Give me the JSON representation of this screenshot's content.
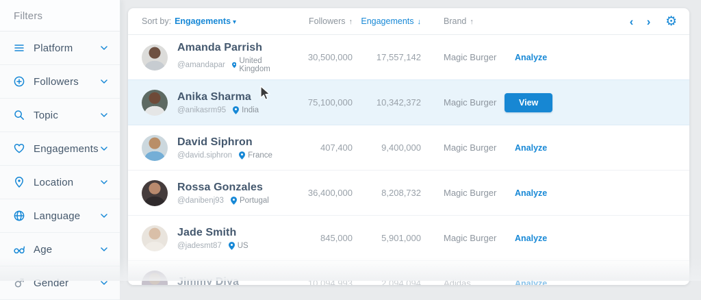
{
  "sidebar": {
    "title": "Filters",
    "items": [
      {
        "label": "Platform",
        "icon": "platform-icon"
      },
      {
        "label": "Followers",
        "icon": "followers-icon"
      },
      {
        "label": "Topic",
        "icon": "topic-icon"
      },
      {
        "label": "Engagements",
        "icon": "engagements-icon"
      },
      {
        "label": "Location",
        "icon": "location-icon"
      },
      {
        "label": "Language",
        "icon": "language-icon"
      },
      {
        "label": "Age",
        "icon": "age-icon"
      },
      {
        "label": "Gender",
        "icon": "gender-icon"
      }
    ]
  },
  "table": {
    "sort_by_label": "Sort by:",
    "sort_by_value": "Engagements",
    "columns": [
      {
        "label": "Followers",
        "sort": "asc",
        "active": false
      },
      {
        "label": "Engagements",
        "sort": "desc",
        "active": true
      },
      {
        "label": "Brand",
        "sort": "asc",
        "active": false
      }
    ],
    "rows": [
      {
        "name": "Amanda Parrish",
        "handle": "@amandapar",
        "location": "United Kingdom",
        "followers": "30,500,000",
        "engagements": "17,557,142",
        "brand": "Magic Burger",
        "action": "Analyze",
        "action_type": "link",
        "highlighted": false,
        "faded": false,
        "avatar": [
          "#dcdcda",
          "#6e5142",
          "#c7ccd1"
        ]
      },
      {
        "name": "Anika Sharma",
        "handle": "@anikasrm95",
        "location": "India",
        "followers": "75,100,000",
        "engagements": "10,342,372",
        "brand": "Magic Burger",
        "action": "View",
        "action_type": "button",
        "highlighted": true,
        "faded": false,
        "avatar": [
          "#5d6a63",
          "#6e4a38",
          "#e5e6e6"
        ]
      },
      {
        "name": "David Siphron",
        "handle": "@david.siphron",
        "location": "France",
        "followers": "407,400",
        "engagements": "9,400,000",
        "brand": "Magic Burger",
        "action": "Analyze",
        "action_type": "link",
        "highlighted": false,
        "faded": false,
        "avatar": [
          "#ccd8de",
          "#b98e68",
          "#74aed6"
        ]
      },
      {
        "name": "Rossa Gonzales",
        "handle": "@danibenj93",
        "location": "Portugal",
        "followers": "36,400,000",
        "engagements": "8,208,732",
        "brand": "Magic Burger",
        "action": "Analyze",
        "action_type": "link",
        "highlighted": false,
        "faded": false,
        "avatar": [
          "#453c3c",
          "#b98a6e",
          "#2f2a2c"
        ]
      },
      {
        "name": "Jade Smith",
        "handle": "@jadesmt87",
        "location": "US",
        "followers": "845,000",
        "engagements": "5,901,000",
        "brand": "Magic Burger",
        "action": "Analyze",
        "action_type": "link",
        "highlighted": false,
        "faded": false,
        "avatar": [
          "#e9e4dd",
          "#d9bfa8",
          "#f0ece6"
        ]
      },
      {
        "name": "Jimmy Diya",
        "handle": "",
        "location": "",
        "followers": "10,094,993",
        "engagements": "2,094,094",
        "brand": "Adidas",
        "action": "Analyze",
        "action_type": "link",
        "highlighted": false,
        "faded": true,
        "avatar": [
          "#8d8498",
          "#a89386",
          "#6b6377"
        ]
      }
    ]
  },
  "icons": {
    "caret-down-icon": "▾",
    "sort-asc-icon": "↑",
    "sort-desc-icon": "↓",
    "chevron-left-icon": "‹",
    "chevron-right-icon": "›",
    "gear-icon": "⚙"
  },
  "colors": {
    "accent": "#1788d6",
    "view_button_bg": "#1787d3",
    "row_highlight_bg": "#e9f4fb",
    "page_bg": "#e9ebed",
    "card_bg": "#ffffff",
    "name_text": "#44586e",
    "muted_text": "#8d959d"
  }
}
